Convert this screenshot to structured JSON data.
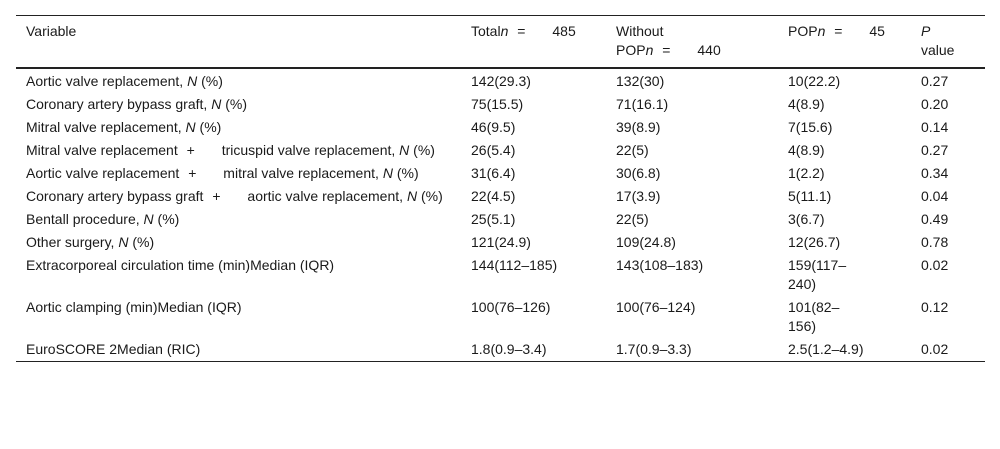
{
  "header": {
    "variable": "Variable",
    "total_label": "Total",
    "total_n_sym": "n",
    "total_eq": "=",
    "total_n": "485",
    "without_label_line1": "Without",
    "without_label_line2": "POP",
    "without_n_sym": "n",
    "without_eq": "=",
    "without_n": "440",
    "pop_label": "POP",
    "pop_n_sym": "n",
    "pop_eq": "=",
    "pop_n": "45",
    "p_label": "P",
    "p_value_label": "value"
  },
  "rows": [
    {
      "pre": "Aortic valve replacement, ",
      "n": "N",
      "post": " (%)",
      "total": "142(29.3)",
      "without": "132(30)",
      "pop": "10(22.2)",
      "p": "0.27"
    },
    {
      "pre": "Coronary artery bypass graft, ",
      "n": "N",
      "post": " (%)",
      "total": "75(15.5)",
      "without": "71(16.1)",
      "pop": "4(8.9)",
      "p": "0.20"
    },
    {
      "pre": "Mitral valve replacement, ",
      "n": "N",
      "post": " (%)",
      "total": "46(9.5)",
      "without": "39(8.9)",
      "pop": "7(15.6)",
      "p": "0.14"
    },
    {
      "part_a": "Mitral valve replacement",
      "plus": "+",
      "part_b": "tricuspid valve replacement, ",
      "n": "N",
      "post": " (%)",
      "total": "26(5.4)",
      "without": "22(5)",
      "pop": "4(8.9)",
      "p": "0.27"
    },
    {
      "part_a": "Aortic valve replacement",
      "plus": "+",
      "part_b": "mitral valve replacement, ",
      "n": "N",
      "post": " (%)",
      "total": "31(6.4)",
      "without": "30(6.8)",
      "pop": "1(2.2)",
      "p": "0.34"
    },
    {
      "part_a": "Coronary artery bypass graft",
      "plus": "+",
      "part_b": "aortic valve replacement, ",
      "n": "N",
      "post": " (%)",
      "total": "22(4.5)",
      "without": "17(3.9)",
      "pop": "5(11.1)",
      "p": "0.04"
    },
    {
      "pre": "Bentall procedure, ",
      "n": "N",
      "post": " (%)",
      "total": "25(5.1)",
      "without": "22(5)",
      "pop": "3(6.7)",
      "p": "0.49"
    },
    {
      "pre": "Other surgery, ",
      "n": "N",
      "post": " (%)",
      "total": "121(24.9)",
      "without": "109(24.8)",
      "pop": "12(26.7)",
      "p": "0.78"
    },
    {
      "label": "Extracorporeal circulation time (min)Median (IQR)",
      "total": "144(112–185)",
      "without": "143(108–183)",
      "pop_line1": "159(117–",
      "pop_line2": "240)",
      "p": "0.02"
    },
    {
      "label": "Aortic clamping (min)Median (IQR)",
      "total": "100(76–126)",
      "without": "100(76–124)",
      "pop_line1": "101(82–",
      "pop_line2": "156)",
      "p": "0.12"
    },
    {
      "label": "EuroSCORE 2Median (RIC)",
      "total": "1.8(0.9–3.4)",
      "without": "1.7(0.9–3.3)",
      "pop": "2.5(1.2–4.9)",
      "p": "0.02"
    }
  ]
}
